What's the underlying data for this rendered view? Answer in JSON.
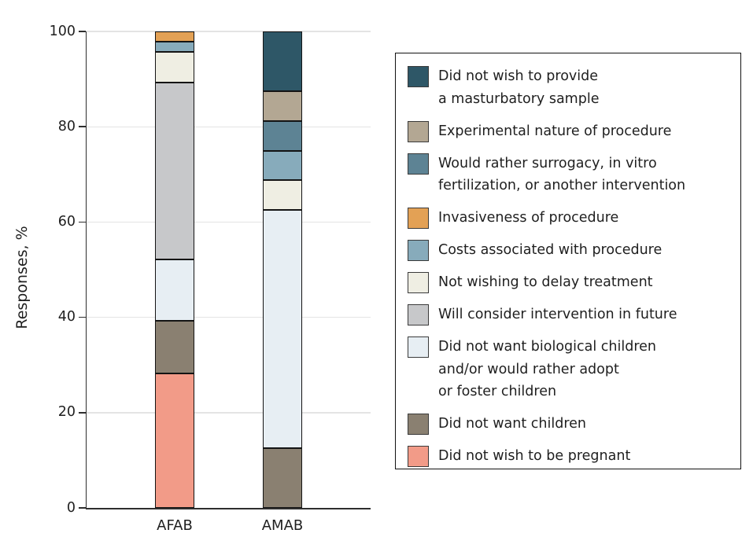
{
  "chart_data": {
    "type": "bar",
    "stacked": true,
    "title": "",
    "xlabel": "",
    "ylabel": "Responses, %",
    "ylim": [
      0,
      100
    ],
    "grid": true,
    "categories": [
      "AFAB",
      "AMAB"
    ],
    "series": [
      {
        "name": "Did not wish to be pregnant",
        "color": "#f29b88",
        "values": [
          28.3,
          0
        ]
      },
      {
        "name": "Did not want children",
        "color": "#8a8071",
        "values": [
          10.9,
          12.5
        ]
      },
      {
        "name": "Did not want biological children and/or would rather adopt or foster children",
        "color": "#e7eef3",
        "values": [
          13.0,
          50.0
        ]
      },
      {
        "name": "Will consider intervention in future",
        "color": "#c7c8ca",
        "values": [
          37.0,
          0
        ]
      },
      {
        "name": "Not wishing to delay treatment",
        "color": "#efeee3",
        "values": [
          6.5,
          6.25
        ]
      },
      {
        "name": "Costs associated with procedure",
        "color": "#87abbb",
        "values": [
          2.2,
          6.25
        ]
      },
      {
        "name": "Invasiveness of procedure",
        "color": "#e3a155",
        "values": [
          2.1,
          0
        ]
      },
      {
        "name": "Would rather surrogacy, in vitro fertilization, or another intervention",
        "color": "#5d8394",
        "values": [
          0,
          6.25
        ]
      },
      {
        "name": "Experimental nature of procedure",
        "color": "#b3a793",
        "values": [
          0,
          6.25
        ]
      },
      {
        "name": "Did not wish to provide a masturbatory sample",
        "color": "#2e5767",
        "values": [
          0,
          12.5
        ]
      }
    ],
    "legend_position": "right"
  },
  "y_axis": {
    "title": "Responses, %",
    "ticks": [
      0,
      20,
      40,
      60,
      80,
      100
    ]
  },
  "x_axis": {
    "categories": [
      "AFAB",
      "AMAB"
    ]
  },
  "legend": {
    "items": [
      {
        "label": "Did not wish to provide\na masturbatory sample",
        "color": "#2e5767"
      },
      {
        "label": "Experimental nature of procedure",
        "color": "#b3a793"
      },
      {
        "label": "Would rather surrogacy, in vitro\nfertilization, or another intervention",
        "color": "#5d8394"
      },
      {
        "label": "Invasiveness of procedure",
        "color": "#e3a155"
      },
      {
        "label": "Costs associated with procedure",
        "color": "#87abbb"
      },
      {
        "label": "Not wishing to delay treatment",
        "color": "#efeee3"
      },
      {
        "label": "Will consider intervention in future",
        "color": "#c7c8ca"
      },
      {
        "label": "Did not want biological children\nand/or would rather adopt\nor foster children",
        "color": "#e7eef3"
      },
      {
        "label": "Did not want children",
        "color": "#8a8071"
      },
      {
        "label": "Did not wish to be pregnant",
        "color": "#f29b88"
      }
    ]
  },
  "colors": {
    "axis": "#2e2e2e",
    "gridline": "#e4e4e4",
    "segment_border": "#141414",
    "text": "#1f1f1f"
  }
}
